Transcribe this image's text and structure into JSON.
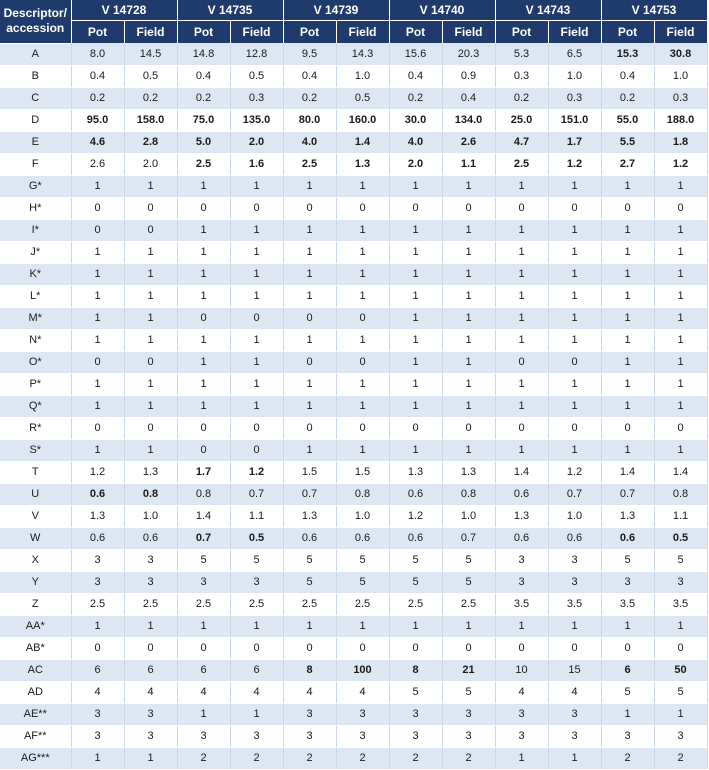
{
  "header": {
    "descriptor_line1": "Descriptor/",
    "descriptor_line2": "accession",
    "accessions": [
      "V 14728",
      "V 14735",
      "V 14739",
      "V 14740",
      "V 14743",
      "V 14753"
    ],
    "sub": [
      "Pot",
      "Field"
    ]
  },
  "rows": [
    {
      "label": "A",
      "values": [
        "8.0",
        "14.5",
        "14.8",
        "12.8",
        "9.5",
        "14.3",
        "15.6",
        "20.3",
        "5.3",
        "6.5",
        "15.3",
        "30.8"
      ],
      "bold": [
        10,
        11
      ]
    },
    {
      "label": "B",
      "values": [
        "0.4",
        "0.5",
        "0.4",
        "0.5",
        "0.4",
        "1.0",
        "0.4",
        "0.9",
        "0.3",
        "1.0",
        "0.4",
        "1.0"
      ],
      "bold": []
    },
    {
      "label": "C",
      "values": [
        "0.2",
        "0.2",
        "0.2",
        "0.3",
        "0.2",
        "0.5",
        "0.2",
        "0.4",
        "0.2",
        "0.3",
        "0.2",
        "0.3"
      ],
      "bold": []
    },
    {
      "label": "D",
      "values": [
        "95.0",
        "158.0",
        "75.0",
        "135.0",
        "80.0",
        "160.0",
        "30.0",
        "134.0",
        "25.0",
        "151.0",
        "55.0",
        "188.0"
      ],
      "bold": [
        0,
        1,
        2,
        3,
        4,
        5,
        6,
        7,
        8,
        9,
        10,
        11
      ]
    },
    {
      "label": "E",
      "values": [
        "4.6",
        "2.8",
        "5.0",
        "2.0",
        "4.0",
        "1.4",
        "4.0",
        "2.6",
        "4.7",
        "1.7",
        "5.5",
        "1.8"
      ],
      "bold": [
        0,
        1,
        2,
        3,
        4,
        5,
        6,
        7,
        8,
        9,
        10,
        11
      ]
    },
    {
      "label": "F",
      "values": [
        "2.6",
        "2.0",
        "2.5",
        "1.6",
        "2.5",
        "1.3",
        "2.0",
        "1.1",
        "2.5",
        "1.2",
        "2.7",
        "1.2"
      ],
      "bold": [
        2,
        3,
        4,
        5,
        6,
        7,
        8,
        9,
        10,
        11
      ]
    },
    {
      "label": "G*",
      "values": [
        "1",
        "1",
        "1",
        "1",
        "1",
        "1",
        "1",
        "1",
        "1",
        "1",
        "1",
        "1"
      ],
      "bold": []
    },
    {
      "label": "H*",
      "values": [
        "0",
        "0",
        "0",
        "0",
        "0",
        "0",
        "0",
        "0",
        "0",
        "0",
        "0",
        "0"
      ],
      "bold": []
    },
    {
      "label": "I*",
      "values": [
        "0",
        "0",
        "1",
        "1",
        "1",
        "1",
        "1",
        "1",
        "1",
        "1",
        "1",
        "1"
      ],
      "bold": []
    },
    {
      "label": "J*",
      "values": [
        "1",
        "1",
        "1",
        "1",
        "1",
        "1",
        "1",
        "1",
        "1",
        "1",
        "1",
        "1"
      ],
      "bold": []
    },
    {
      "label": "K*",
      "values": [
        "1",
        "1",
        "1",
        "1",
        "1",
        "1",
        "1",
        "1",
        "1",
        "1",
        "1",
        "1"
      ],
      "bold": []
    },
    {
      "label": "L*",
      "values": [
        "1",
        "1",
        "1",
        "1",
        "1",
        "1",
        "1",
        "1",
        "1",
        "1",
        "1",
        "1"
      ],
      "bold": []
    },
    {
      "label": "M*",
      "values": [
        "1",
        "1",
        "0",
        "0",
        "0",
        "0",
        "1",
        "1",
        "1",
        "1",
        "1",
        "1"
      ],
      "bold": []
    },
    {
      "label": "N*",
      "values": [
        "1",
        "1",
        "1",
        "1",
        "1",
        "1",
        "1",
        "1",
        "1",
        "1",
        "1",
        "1"
      ],
      "bold": []
    },
    {
      "label": "O*",
      "values": [
        "0",
        "0",
        "1",
        "1",
        "0",
        "0",
        "1",
        "1",
        "0",
        "0",
        "1",
        "1"
      ],
      "bold": []
    },
    {
      "label": "P*",
      "values": [
        "1",
        "1",
        "1",
        "1",
        "1",
        "1",
        "1",
        "1",
        "1",
        "1",
        "1",
        "1"
      ],
      "bold": []
    },
    {
      "label": "Q*",
      "values": [
        "1",
        "1",
        "1",
        "1",
        "1",
        "1",
        "1",
        "1",
        "1",
        "1",
        "1",
        "1"
      ],
      "bold": []
    },
    {
      "label": "R*",
      "values": [
        "0",
        "0",
        "0",
        "0",
        "0",
        "0",
        "0",
        "0",
        "0",
        "0",
        "0",
        "0"
      ],
      "bold": []
    },
    {
      "label": "S*",
      "values": [
        "1",
        "1",
        "0",
        "0",
        "1",
        "1",
        "1",
        "1",
        "1",
        "1",
        "1",
        "1"
      ],
      "bold": []
    },
    {
      "label": "T",
      "values": [
        "1.2",
        "1.3",
        "1.7",
        "1.2",
        "1.5",
        "1.5",
        "1.3",
        "1.3",
        "1.4",
        "1.2",
        "1.4",
        "1.4"
      ],
      "bold": [
        2,
        3
      ]
    },
    {
      "label": "U",
      "values": [
        "0.6",
        "0.8",
        "0.8",
        "0.7",
        "0.7",
        "0.8",
        "0.6",
        "0.8",
        "0.6",
        "0.7",
        "0.7",
        "0.8"
      ],
      "bold": [
        0,
        1
      ]
    },
    {
      "label": "V",
      "values": [
        "1.3",
        "1.0",
        "1.4",
        "1.1",
        "1.3",
        "1.0",
        "1.2",
        "1.0",
        "1.3",
        "1.0",
        "1.3",
        "1.1"
      ],
      "bold": []
    },
    {
      "label": "W",
      "values": [
        "0.6",
        "0.6",
        "0.7",
        "0.5",
        "0.6",
        "0.6",
        "0.6",
        "0.7",
        "0.6",
        "0.6",
        "0.6",
        "0.5"
      ],
      "bold": [
        2,
        3,
        10,
        11
      ]
    },
    {
      "label": "X",
      "values": [
        "3",
        "3",
        "5",
        "5",
        "5",
        "5",
        "5",
        "5",
        "3",
        "3",
        "5",
        "5"
      ],
      "bold": []
    },
    {
      "label": "Y",
      "values": [
        "3",
        "3",
        "3",
        "3",
        "5",
        "5",
        "5",
        "5",
        "3",
        "3",
        "3",
        "3"
      ],
      "bold": []
    },
    {
      "label": "Z",
      "values": [
        "2.5",
        "2.5",
        "2.5",
        "2.5",
        "2.5",
        "2.5",
        "2.5",
        "2.5",
        "3.5",
        "3.5",
        "3.5",
        "3.5"
      ],
      "bold": []
    },
    {
      "label": "AA*",
      "values": [
        "1",
        "1",
        "1",
        "1",
        "1",
        "1",
        "1",
        "1",
        "1",
        "1",
        "1",
        "1"
      ],
      "bold": []
    },
    {
      "label": "AB*",
      "values": [
        "0",
        "0",
        "0",
        "0",
        "0",
        "0",
        "0",
        "0",
        "0",
        "0",
        "0",
        "0"
      ],
      "bold": []
    },
    {
      "label": "AC",
      "values": [
        "6",
        "6",
        "6",
        "6",
        "8",
        "100",
        "8",
        "21",
        "10",
        "15",
        "6",
        "50"
      ],
      "bold": [
        4,
        5,
        6,
        7,
        10,
        11
      ]
    },
    {
      "label": "AD",
      "values": [
        "4",
        "4",
        "4",
        "4",
        "4",
        "4",
        "5",
        "5",
        "4",
        "4",
        "5",
        "5"
      ],
      "bold": []
    },
    {
      "label": "AE**",
      "values": [
        "3",
        "3",
        "1",
        "1",
        "3",
        "3",
        "3",
        "3",
        "3",
        "3",
        "1",
        "1"
      ],
      "bold": []
    },
    {
      "label": "AF**",
      "values": [
        "3",
        "3",
        "3",
        "3",
        "3",
        "3",
        "3",
        "3",
        "3",
        "3",
        "3",
        "3"
      ],
      "bold": []
    },
    {
      "label": "AG***",
      "values": [
        "1",
        "1",
        "2",
        "2",
        "2",
        "2",
        "2",
        "2",
        "1",
        "1",
        "2",
        "2"
      ],
      "bold": []
    }
  ]
}
